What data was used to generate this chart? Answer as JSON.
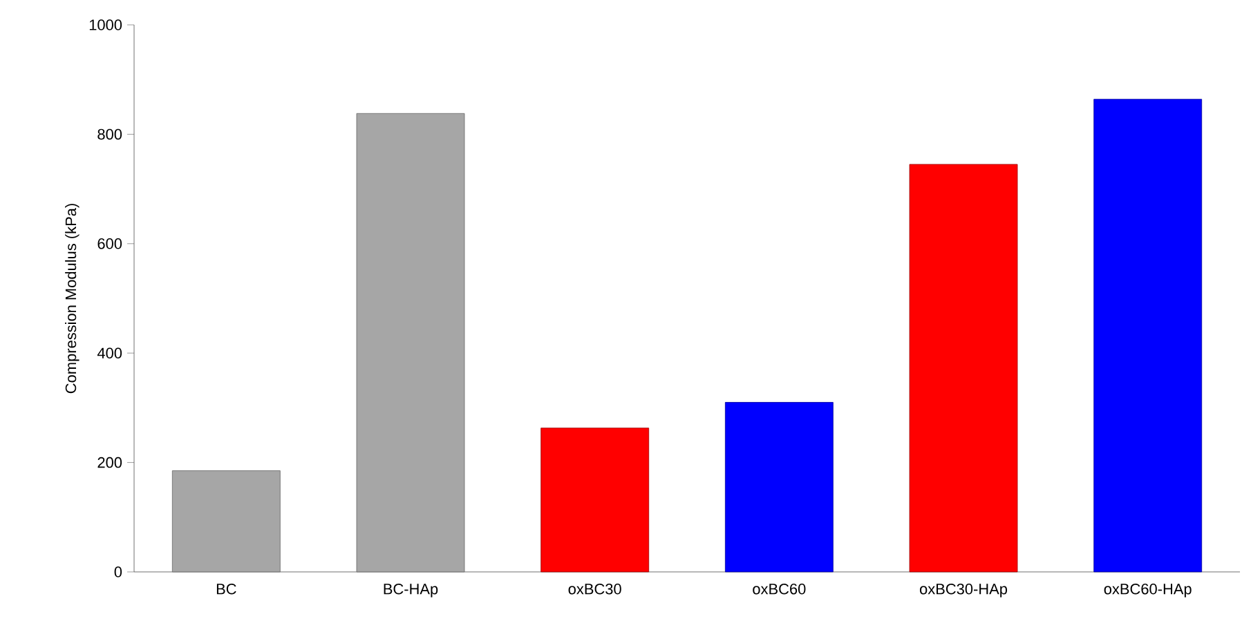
{
  "chart_data": {
    "type": "bar",
    "ylabel": "Compression Modulus (kPa)",
    "categories": [
      "BC",
      "BC-HAp",
      "oxBC30",
      "oxBC60",
      "oxBC30-HAp",
      "oxBC60-HAp"
    ],
    "values": [
      185,
      838,
      263,
      310,
      745,
      864
    ],
    "colors": [
      "#a6a6a6",
      "#a6a6a6",
      "#ff0000",
      "#0000ff",
      "#ff0000",
      "#0000ff"
    ],
    "ylim": [
      0,
      1000
    ],
    "yticks": [
      0,
      200,
      400,
      600,
      800,
      1000
    ]
  }
}
